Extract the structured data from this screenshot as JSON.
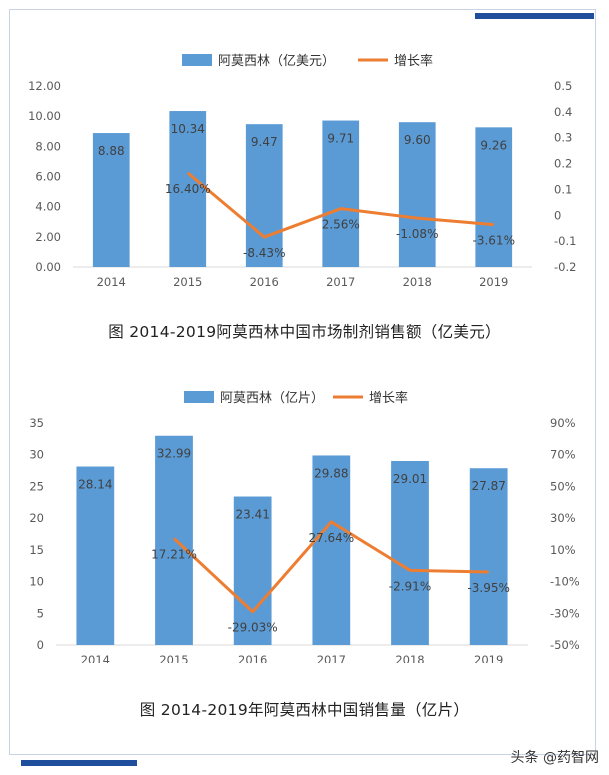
{
  "colors": {
    "bar": "#5b9bd5",
    "line": "#ed7d31",
    "axis_text": "#595959",
    "frame": "#c9d3e6",
    "accent": "#1f4e9c"
  },
  "watermark": "头条 @药智网",
  "chart_data": [
    {
      "type": "bar",
      "categories": [
        "2014",
        "2015",
        "2016",
        "2017",
        "2018",
        "2019"
      ],
      "series": [
        {
          "name": "阿莫西林（亿美元）",
          "type": "bar",
          "axis": "left",
          "values": [
            8.88,
            10.34,
            9.47,
            9.71,
            9.6,
            9.26
          ],
          "labels": [
            "8.88",
            "10.34",
            "9.47",
            "9.71",
            "9.60",
            "9.26"
          ]
        },
        {
          "name": "增长率",
          "type": "line",
          "axis": "right",
          "values": [
            null,
            0.164,
            -0.0843,
            0.0256,
            -0.0108,
            -0.0361
          ],
          "labels": [
            "",
            "16.40%",
            "-8.43%",
            "2.56%",
            "-1.08%",
            "-3.61%"
          ]
        }
      ],
      "ylim": [
        0,
        12
      ],
      "yticks": [
        "0.00",
        "2.00",
        "4.00",
        "6.00",
        "8.00",
        "10.00",
        "12.00"
      ],
      "y2lim": [
        -0.2,
        0.5
      ],
      "y2ticks": [
        "-0.2",
        "-0.1",
        "0",
        "0.1",
        "0.2",
        "0.3",
        "0.4",
        "0.5"
      ],
      "legend_position": "top",
      "grid": false,
      "title": "图 2014-2019阿莫西林中国市场制剂销售额（亿美元）"
    },
    {
      "type": "bar",
      "categories": [
        "2014",
        "2015",
        "2016",
        "2017",
        "2018",
        "2019"
      ],
      "series": [
        {
          "name": "阿莫西林（亿片）",
          "type": "bar",
          "axis": "left",
          "values": [
            28.14,
            32.99,
            23.41,
            29.88,
            29.01,
            27.87
          ],
          "labels": [
            "28.14",
            "32.99",
            "23.41",
            "29.88",
            "29.01",
            "27.87"
          ]
        },
        {
          "name": "增长率",
          "type": "line",
          "axis": "right",
          "values": [
            null,
            0.1721,
            -0.2903,
            0.2764,
            -0.0291,
            -0.0395
          ],
          "labels": [
            "",
            "17.21%",
            "-29.03%",
            "27.64%",
            "-2.91%",
            "-3.95%"
          ]
        }
      ],
      "ylim": [
        0,
        35
      ],
      "yticks": [
        "0",
        "5",
        "10",
        "15",
        "20",
        "25",
        "30",
        "35"
      ],
      "y2lim": [
        -0.5,
        0.9
      ],
      "y2ticks": [
        "-50%",
        "-30%",
        "-10%",
        "10%",
        "30%",
        "50%",
        "70%",
        "90%"
      ],
      "legend_position": "top",
      "grid": false,
      "title": "图 2014-2019年阿莫西林中国销售量（亿片）"
    }
  ]
}
